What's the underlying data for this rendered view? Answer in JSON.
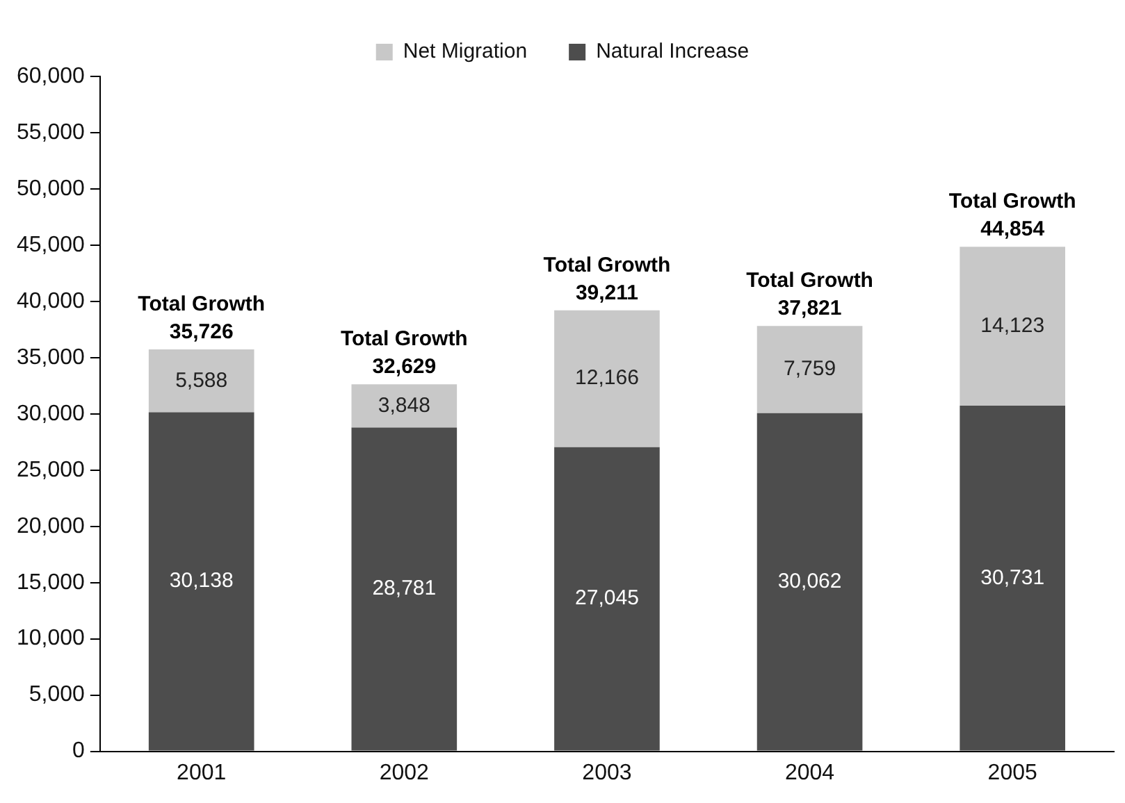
{
  "chart_data": {
    "type": "bar",
    "stacked": true,
    "categories": [
      "2001",
      "2002",
      "2003",
      "2004",
      "2005"
    ],
    "series": [
      {
        "name": "Natural Increase",
        "color": "#4d4d4d",
        "values": [
          30138,
          28781,
          27045,
          30062,
          30731
        ],
        "value_labels": [
          "30,138",
          "28,781",
          "27,045",
          "30,062",
          "30,731"
        ]
      },
      {
        "name": "Net Migration",
        "color": "#c8c8c8",
        "values": [
          5588,
          3848,
          12166,
          7759,
          14123
        ],
        "value_labels": [
          "5,588",
          "3,848",
          "12,166",
          "7,759",
          "14,123"
        ]
      }
    ],
    "totals": [
      "Total Growth\n35,726",
      "Total Growth\n32,629",
      "Total Growth\n39,211",
      "Total Growth\n37,821",
      "Total Growth\n44,854"
    ],
    "ylim": [
      0,
      60000
    ],
    "yticks": [
      {
        "value": 0,
        "label": "0"
      },
      {
        "value": 5000,
        "label": "5,000"
      },
      {
        "value": 10000,
        "label": "10,000"
      },
      {
        "value": 15000,
        "label": "15,000"
      },
      {
        "value": 20000,
        "label": "20,000"
      },
      {
        "value": 25000,
        "label": "25,000"
      },
      {
        "value": 30000,
        "label": "30,000"
      },
      {
        "value": 35000,
        "label": "35,000"
      },
      {
        "value": 40000,
        "label": "40,000"
      },
      {
        "value": 45000,
        "label": "45,000"
      },
      {
        "value": 50000,
        "label": "50,000"
      },
      {
        "value": 55000,
        "label": "55,000"
      },
      {
        "value": 60000,
        "label": "60,000"
      }
    ],
    "legend": "top",
    "grid": false
  }
}
